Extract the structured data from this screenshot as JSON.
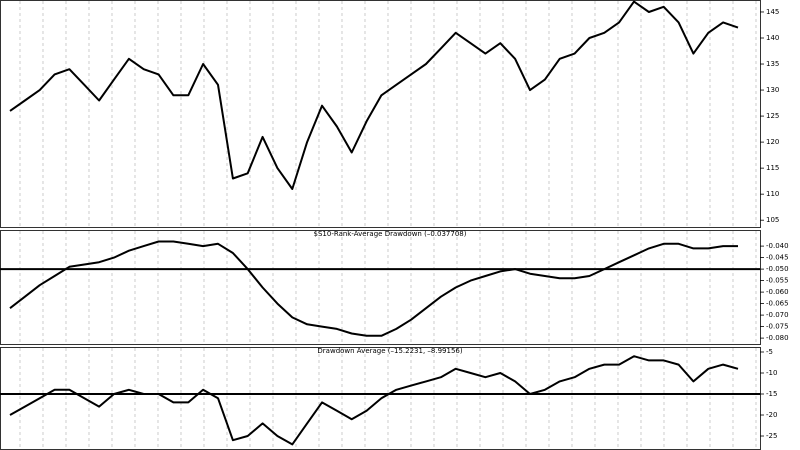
{
  "chart_data": [
    {
      "type": "line",
      "color": "#000000",
      "values": [
        126,
        128,
        130,
        133,
        134,
        131,
        128,
        132,
        136,
        134,
        133,
        129,
        129,
        135,
        131,
        113,
        114,
        121,
        115,
        111,
        120,
        127,
        123,
        118,
        124,
        129,
        131,
        133,
        135,
        138,
        141,
        139,
        137,
        139,
        136,
        130,
        132,
        136,
        137,
        140,
        141,
        143,
        147,
        145,
        146,
        143,
        137,
        141,
        143,
        142
      ],
      "ylim": [
        103.5,
        147.3
      ],
      "yticks": [
        105,
        110,
        115,
        120,
        125,
        130,
        135,
        140,
        145
      ]
    },
    {
      "type": "line",
      "color": "#000000",
      "title": "$S10-Rank-Average Drawdown (–0.037708)",
      "values": [
        -0.067,
        -0.062,
        -0.057,
        -0.053,
        -0.049,
        -0.048,
        -0.047,
        -0.045,
        -0.042,
        -0.04,
        -0.038,
        -0.038,
        -0.039,
        -0.04,
        -0.039,
        -0.043,
        -0.05,
        -0.058,
        -0.065,
        -0.071,
        -0.074,
        -0.075,
        -0.076,
        -0.078,
        -0.079,
        -0.079,
        -0.076,
        -0.072,
        -0.067,
        -0.062,
        -0.058,
        -0.055,
        -0.053,
        -0.051,
        -0.05,
        -0.052,
        -0.053,
        -0.054,
        -0.054,
        -0.053,
        -0.05,
        -0.047,
        -0.044,
        -0.041,
        -0.039,
        -0.039,
        -0.041,
        -0.041,
        -0.04,
        -0.04
      ],
      "ylim": [
        -0.083,
        -0.033
      ],
      "yticks": [
        {
          "value": -0.04,
          "label": "-0.040"
        },
        {
          "value": -0.045,
          "label": "-0.045"
        },
        {
          "value": -0.05,
          "label": "-0.050"
        },
        {
          "value": -0.055,
          "label": "-0.055"
        },
        {
          "value": -0.06,
          "label": "-0.060"
        },
        {
          "value": -0.065,
          "label": "-0.065"
        },
        {
          "value": -0.07,
          "label": "-0.070"
        },
        {
          "value": -0.075,
          "label": "-0.075"
        },
        {
          "value": -0.08,
          "label": "-0.080"
        }
      ],
      "hline": -0.05
    },
    {
      "type": "line",
      "color": "#000000",
      "title": "Drawdown Average (–15.2231, –8.99156)",
      "values": [
        -20,
        -18,
        -16,
        -14,
        -14,
        -16,
        -18,
        -15,
        -14,
        -15,
        -15,
        -17,
        -17,
        -14,
        -16,
        -26,
        -25,
        -22,
        -25,
        -27,
        -22,
        -17,
        -19,
        -21,
        -19,
        -16,
        -14,
        -13,
        -12,
        -11,
        -9,
        -10,
        -11,
        -10,
        -12,
        -15,
        -14,
        -12,
        -11,
        -9,
        -8,
        -8,
        -6,
        -7,
        -7,
        -8,
        -12,
        -9,
        -8,
        -9
      ],
      "ylim": [
        -28.33,
        -3.81
      ],
      "yticks": [
        -5,
        -10,
        -15,
        -20,
        -25
      ],
      "hline": -15
    }
  ]
}
